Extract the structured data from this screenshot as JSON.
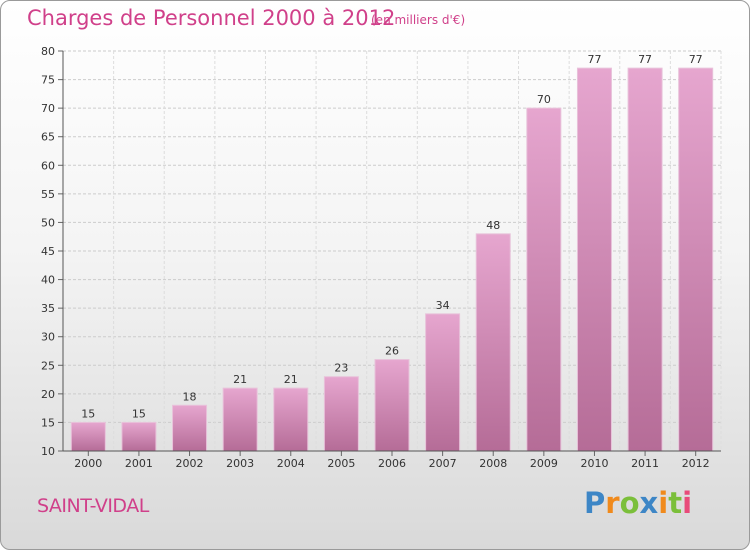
{
  "title": "Charges de Personnel 2000 à 2012",
  "subtitle": "(en milliers d'€)",
  "commune": "SAINT-VIDAL",
  "logo": {
    "text": "Proxiti",
    "letters": [
      {
        "ch": "P",
        "color": "#3d86c6"
      },
      {
        "ch": "r",
        "color": "#f08a1c"
      },
      {
        "ch": "o",
        "color": "#7bbf3a"
      },
      {
        "ch": "x",
        "color": "#3d86c6"
      },
      {
        "ch": "i",
        "color": "#f08a1c"
      },
      {
        "ch": "t",
        "color": "#7bbf3a"
      },
      {
        "ch": "i",
        "color": "#e84b7a"
      }
    ]
  },
  "colors": {
    "accent": "#d0408a",
    "bar_top": "#e6a6cf",
    "bar_bottom": "#b56c97"
  },
  "chart_data": {
    "type": "bar",
    "categories": [
      "2000",
      "2001",
      "2002",
      "2003",
      "2004",
      "2005",
      "2006",
      "2007",
      "2008",
      "2009",
      "2010",
      "2011",
      "2012"
    ],
    "values": [
      15,
      15,
      18,
      21,
      21,
      23,
      26,
      34,
      48,
      70,
      77,
      77,
      77
    ],
    "ylim": [
      10,
      80
    ],
    "yticks": [
      10,
      15,
      20,
      25,
      30,
      35,
      40,
      45,
      50,
      55,
      60,
      65,
      70,
      75,
      80
    ],
    "grid": true
  }
}
